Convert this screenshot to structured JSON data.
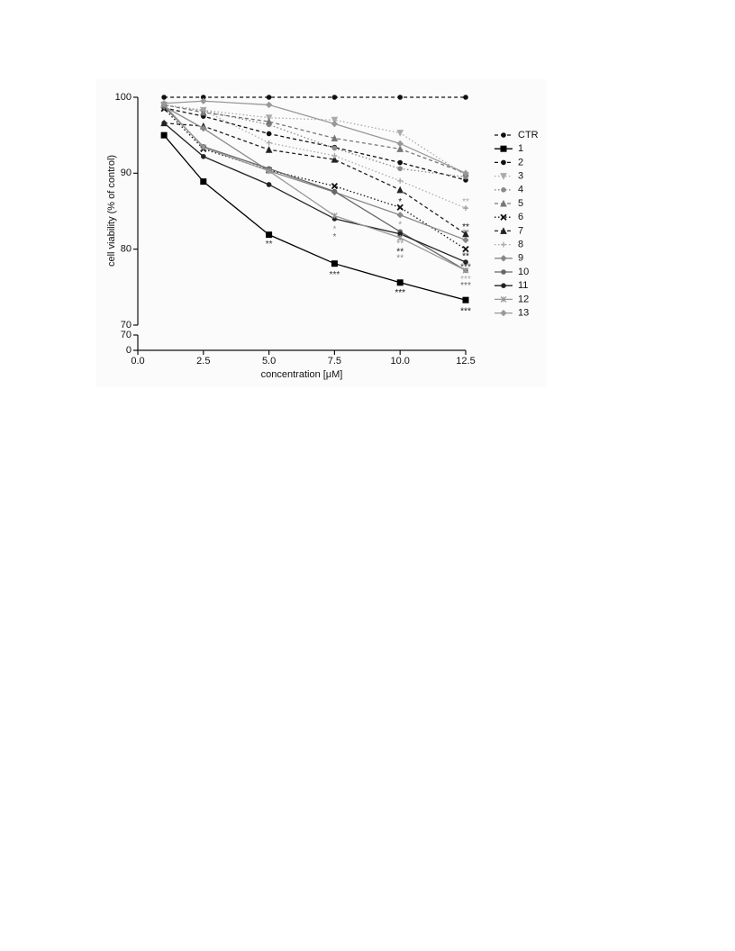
{
  "chart_data": {
    "type": "line",
    "y_label": "cell viability (% of control)",
    "x_label": "concentration [μM]",
    "xlim": [
      0,
      12.5
    ],
    "xticks": [
      {
        "value": 0,
        "label": "0.0"
      },
      {
        "value": 2.5,
        "label": "2.5"
      },
      {
        "value": 5,
        "label": "5.0"
      },
      {
        "value": 7.5,
        "label": "7.5"
      },
      {
        "value": 10,
        "label": "10.0"
      },
      {
        "value": 12.5,
        "label": "12.5"
      }
    ],
    "ylim": [
      70,
      100
    ],
    "yticks": [
      70,
      80,
      90,
      100
    ],
    "ylim_lower": [
      0,
      70
    ],
    "yticks_lower": [
      0,
      70
    ],
    "x": [
      1,
      2.5,
      5,
      7.5,
      10,
      12.5
    ],
    "series": [
      {
        "name": "CTR",
        "color": "#111111",
        "marker": "circle",
        "dash": "dashed",
        "values": [
          100,
          100,
          100,
          100,
          100,
          100
        ]
      },
      {
        "name": "1",
        "color": "#000000",
        "marker": "square",
        "dash": "solid",
        "values": [
          95,
          88.9,
          81.9,
          78.1,
          75.6,
          73.3
        ]
      },
      {
        "name": "2",
        "color": "#111111",
        "marker": "circle",
        "dash": "dashed",
        "values": [
          98.6,
          97.5,
          95.2,
          93.4,
          91.4,
          89.1
        ]
      },
      {
        "name": "3",
        "color": "#aaaaaa",
        "marker": "triangle-down",
        "dash": "dotted",
        "values": [
          99,
          98.3,
          97.3,
          97,
          95.3,
          89.7
        ]
      },
      {
        "name": "4",
        "color": "#888888",
        "marker": "circle",
        "dash": "dotted",
        "values": [
          99,
          98.2,
          96.4,
          93.3,
          90.6,
          89.5
        ]
      },
      {
        "name": "5",
        "color": "#777777",
        "marker": "triangle",
        "dash": "dashed",
        "values": [
          99,
          98,
          96.8,
          94.6,
          93.2,
          90
        ]
      },
      {
        "name": "6",
        "color": "#111111",
        "marker": "x",
        "dash": "dotted",
        "values": [
          98.5,
          93.2,
          90.4,
          88.3,
          85.5,
          80
        ]
      },
      {
        "name": "7",
        "color": "#222222",
        "marker": "triangle",
        "dash": "dashed",
        "values": [
          96.6,
          96.2,
          93.1,
          91.8,
          87.8,
          82
        ]
      },
      {
        "name": "8",
        "color": "#aaaaaa",
        "marker": "plus",
        "dash": "dotted",
        "values": [
          99,
          98.3,
          94,
          92.3,
          89,
          85.4
        ]
      },
      {
        "name": "9",
        "color": "#888888",
        "marker": "diamond",
        "dash": "solid",
        "values": [
          98.8,
          95.9,
          90.3,
          87.5,
          84.5,
          81.2
        ]
      },
      {
        "name": "10",
        "color": "#666666",
        "marker": "circle",
        "dash": "solid",
        "values": [
          98.8,
          93.5,
          90.6,
          87.6,
          82.3,
          77.2
        ]
      },
      {
        "name": "11",
        "color": "#222222",
        "marker": "circle",
        "dash": "solid",
        "values": [
          96.6,
          92.2,
          88.5,
          84,
          82,
          78.3
        ]
      },
      {
        "name": "12",
        "color": "#999999",
        "marker": "asterisk",
        "dash": "solid",
        "values": [
          99,
          93.4,
          90.3,
          84.4,
          81.5,
          77.2
        ]
      },
      {
        "name": "13",
        "color": "#999999",
        "marker": "diamond",
        "dash": "solid",
        "values": [
          99.2,
          99.5,
          99,
          96.5,
          93.9,
          90
        ]
      }
    ],
    "annotations": [
      {
        "text": "**",
        "x": 5,
        "y": 80.6,
        "color": "#333333"
      },
      {
        "text": "*",
        "x": 7.5,
        "y": 82.6,
        "color": "#999999"
      },
      {
        "text": "*",
        "x": 7.5,
        "y": 81.6,
        "color": "#666666"
      },
      {
        "text": "***",
        "x": 7.5,
        "y": 76.6,
        "color": "#333333"
      },
      {
        "text": "*",
        "x": 10,
        "y": 86.2,
        "color": "#111111"
      },
      {
        "text": "*",
        "x": 10,
        "y": 83.2,
        "color": "#999999"
      },
      {
        "text": "**",
        "x": 10,
        "y": 80.7,
        "color": "#999999"
      },
      {
        "text": "**",
        "x": 10,
        "y": 79.6,
        "color": "#111111"
      },
      {
        "text": "**",
        "x": 10,
        "y": 78.8,
        "color": "#888888"
      },
      {
        "text": "***",
        "x": 10,
        "y": 74.2,
        "color": "#111111"
      },
      {
        "text": "**",
        "x": 12.5,
        "y": 86.2,
        "color": "#aaaaaa"
      },
      {
        "text": "*",
        "x": 12.5,
        "y": 85.2,
        "color": "#999999"
      },
      {
        "text": "**",
        "x": 12.5,
        "y": 82.9,
        "color": "#111111"
      },
      {
        "text": "**",
        "x": 12.5,
        "y": 82.1,
        "color": "#888888"
      },
      {
        "text": "**",
        "x": 12.5,
        "y": 79,
        "color": "#111111"
      },
      {
        "text": "***",
        "x": 12.5,
        "y": 77.6,
        "color": "#333333"
      },
      {
        "text": "***",
        "x": 12.5,
        "y": 76,
        "color": "#aaaaaa"
      },
      {
        "text": "***",
        "x": 12.5,
        "y": 75.2,
        "color": "#666666"
      },
      {
        "text": "***",
        "x": 12.5,
        "y": 71.8,
        "color": "#111111"
      }
    ]
  }
}
